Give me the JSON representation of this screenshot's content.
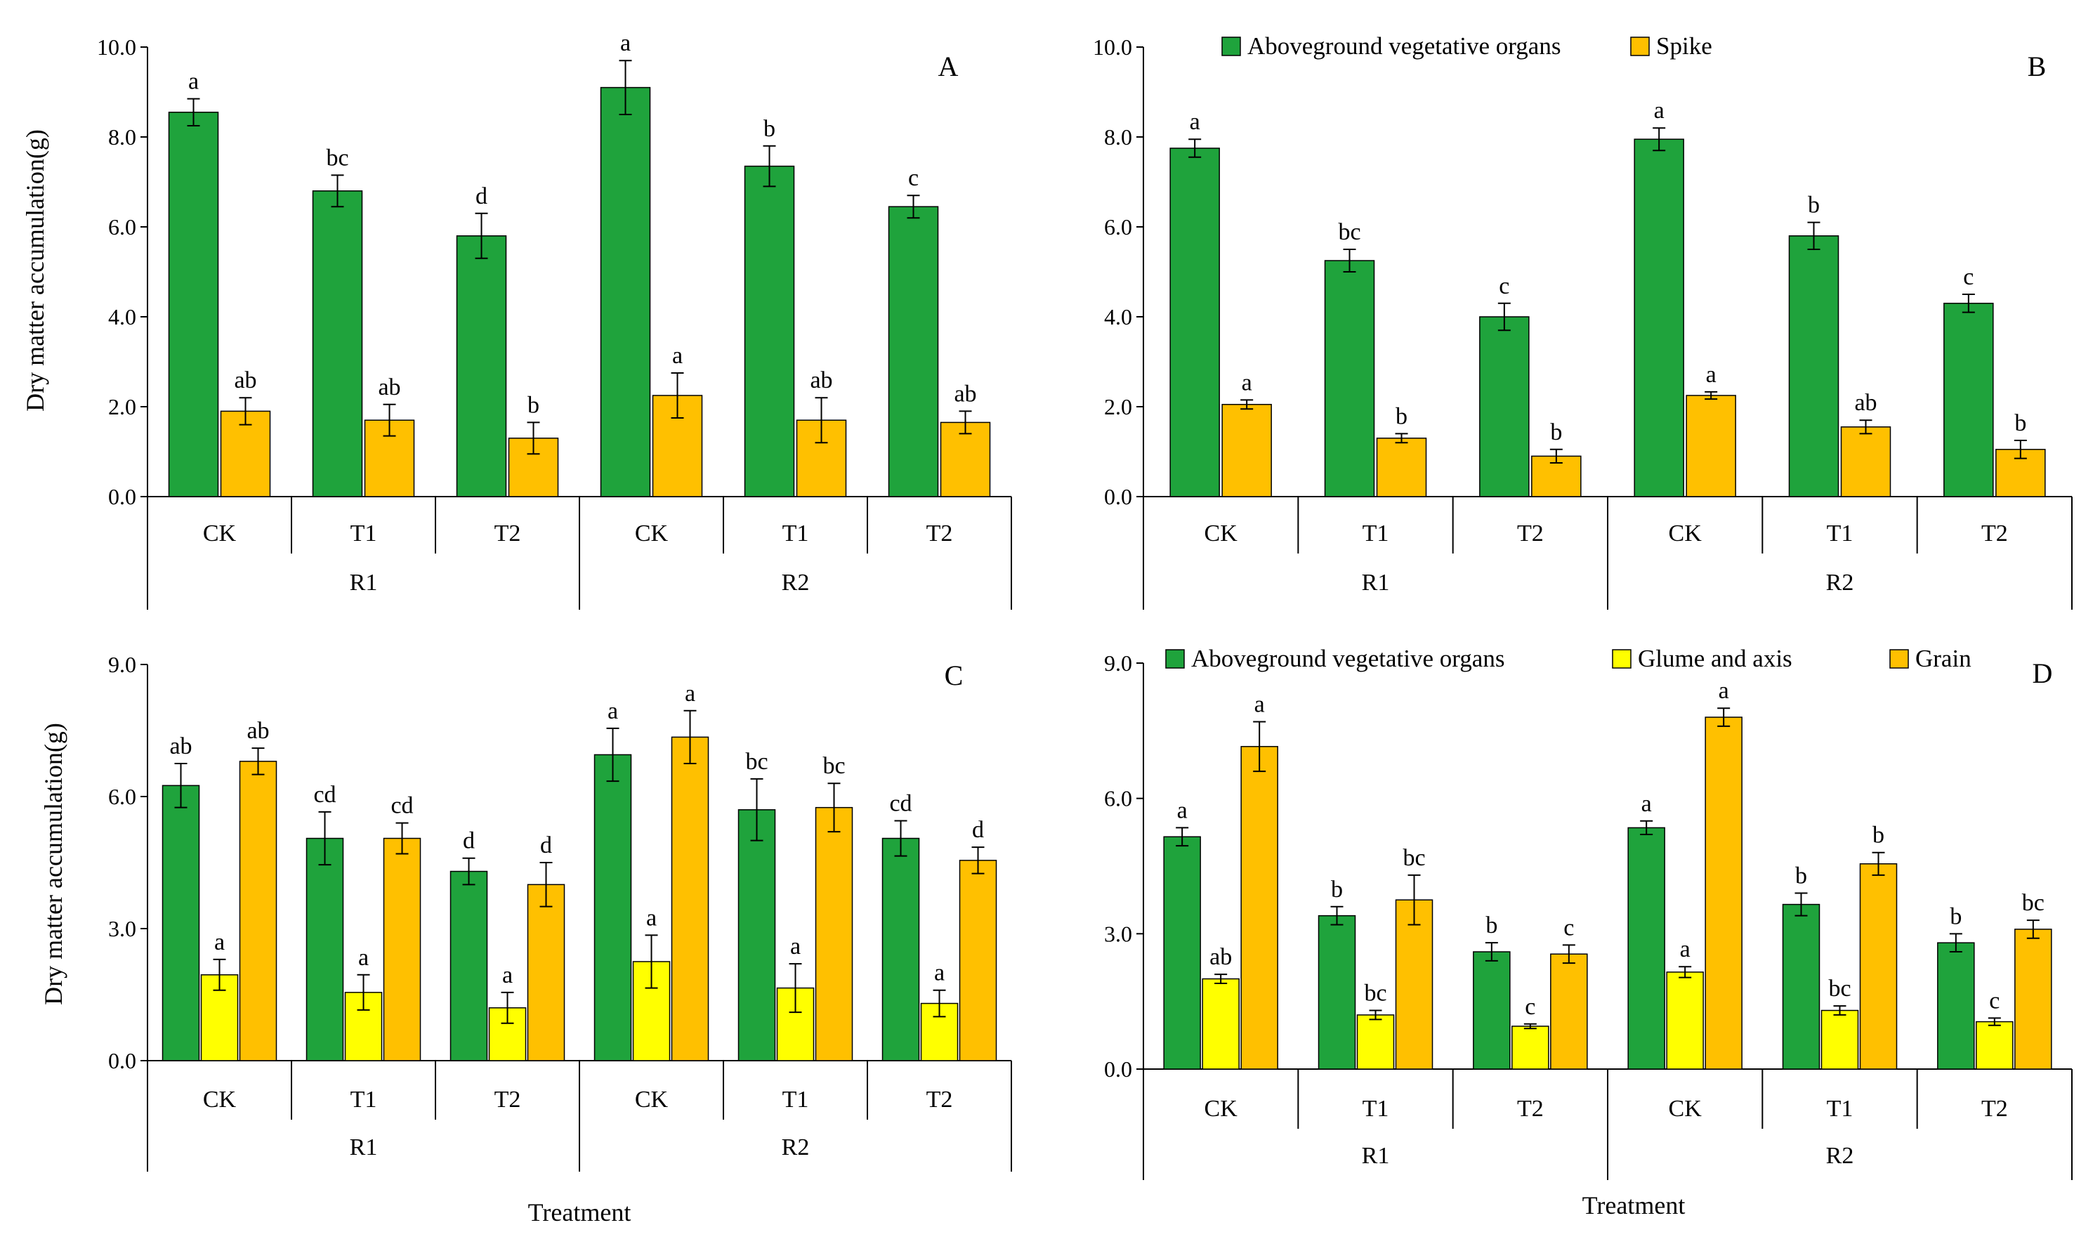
{
  "figure": {
    "x_axis_title": "Treatment"
  },
  "colors": {
    "veg": "#1fa33c",
    "spike": "#ffc000",
    "glume": "#ffff00",
    "grain": "#ffc000",
    "edge": "#000000"
  },
  "chart_data": [
    {
      "type": "bar",
      "panel_label": "A",
      "ylabel": "Dry matter accumulation(g)",
      "xlabel": "",
      "ylim": [
        0,
        10
      ],
      "yticks": [
        "0.0",
        "2.0",
        "4.0",
        "6.0",
        "8.0",
        "10.0"
      ],
      "ytick_values": [
        0,
        2,
        4,
        6,
        8,
        10
      ],
      "groups": [
        "R1",
        "R2"
      ],
      "categories": [
        "CK",
        "T1",
        "T2",
        "CK",
        "T1",
        "T2"
      ],
      "show_legend": false,
      "series": [
        {
          "name": "Aboveground vegetative organs",
          "color_key": "veg",
          "values": [
            8.55,
            6.8,
            5.8,
            9.1,
            7.35,
            6.45
          ],
          "errors": [
            0.3,
            0.35,
            0.5,
            0.6,
            0.45,
            0.25
          ],
          "letters": [
            "a",
            "bc",
            "d",
            "a",
            "b",
            "c"
          ]
        },
        {
          "name": "Spike",
          "color_key": "spike",
          "values": [
            1.9,
            1.7,
            1.3,
            2.25,
            1.7,
            1.65
          ],
          "errors": [
            0.3,
            0.35,
            0.35,
            0.5,
            0.5,
            0.25
          ],
          "letters": [
            "ab",
            "ab",
            "b",
            "a",
            "ab",
            "ab"
          ]
        }
      ]
    },
    {
      "type": "bar",
      "panel_label": "B",
      "ylabel": "",
      "xlabel": "",
      "ylim": [
        0,
        10
      ],
      "yticks": [
        "0.0",
        "2.0",
        "4.0",
        "6.0",
        "8.0",
        "10.0"
      ],
      "ytick_values": [
        0,
        2,
        4,
        6,
        8,
        10
      ],
      "groups": [
        "R1",
        "R2"
      ],
      "categories": [
        "CK",
        "T1",
        "T2",
        "CK",
        "T1",
        "T2"
      ],
      "show_legend": true,
      "series": [
        {
          "name": "Aboveground vegetative organs",
          "color_key": "veg",
          "values": [
            7.75,
            5.25,
            4.0,
            7.95,
            5.8,
            4.3
          ],
          "errors": [
            0.2,
            0.25,
            0.3,
            0.25,
            0.3,
            0.2
          ],
          "letters": [
            "a",
            "bc",
            "c",
            "a",
            "b",
            "c"
          ]
        },
        {
          "name": "Spike",
          "color_key": "spike",
          "values": [
            2.05,
            1.3,
            0.9,
            2.25,
            1.55,
            1.05
          ],
          "errors": [
            0.1,
            0.1,
            0.15,
            0.08,
            0.15,
            0.2
          ],
          "letters": [
            "a",
            "b",
            "b",
            "a",
            "ab",
            "b"
          ]
        }
      ]
    },
    {
      "type": "bar",
      "panel_label": "C",
      "ylabel": "Dry matter accumulation(g)",
      "xlabel": "Treatment",
      "ylim": [
        0,
        9
      ],
      "yticks": [
        "0.0",
        "3.0",
        "6.0",
        "9.0"
      ],
      "ytick_values": [
        0,
        3,
        6,
        9
      ],
      "groups": [
        "R1",
        "R2"
      ],
      "categories": [
        "CK",
        "T1",
        "T2",
        "CK",
        "T1",
        "T2"
      ],
      "show_legend": false,
      "series": [
        {
          "name": "Aboveground vegetative organs",
          "color_key": "veg",
          "values": [
            6.25,
            5.05,
            4.3,
            6.95,
            5.7,
            5.05
          ],
          "errors": [
            0.5,
            0.6,
            0.3,
            0.6,
            0.7,
            0.4
          ],
          "letters": [
            "ab",
            "cd",
            "d",
            "a",
            "bc",
            "cd"
          ]
        },
        {
          "name": "Glume and axis",
          "color_key": "glume",
          "values": [
            1.95,
            1.55,
            1.2,
            2.25,
            1.65,
            1.3
          ],
          "errors": [
            0.35,
            0.4,
            0.35,
            0.6,
            0.55,
            0.3
          ],
          "letters": [
            "a",
            "a",
            "a",
            "a",
            "a",
            "a"
          ]
        },
        {
          "name": "Grain",
          "color_key": "grain",
          "values": [
            6.8,
            5.05,
            4.0,
            7.35,
            5.75,
            4.55
          ],
          "errors": [
            0.3,
            0.35,
            0.5,
            0.6,
            0.55,
            0.3
          ],
          "letters": [
            "ab",
            "cd",
            "d",
            "a",
            "bc",
            "d"
          ]
        }
      ]
    },
    {
      "type": "bar",
      "panel_label": "D",
      "ylabel": "",
      "xlabel": "Treatment",
      "ylim": [
        0,
        9
      ],
      "yticks": [
        "0.0",
        "3.0",
        "6.0",
        "9.0"
      ],
      "ytick_values": [
        0,
        3,
        6,
        9
      ],
      "groups": [
        "R1",
        "R2"
      ],
      "categories": [
        "CK",
        "T1",
        "T2",
        "CK",
        "T1",
        "T2"
      ],
      "show_legend": true,
      "series": [
        {
          "name": "Aboveground vegetative organs",
          "color_key": "veg",
          "values": [
            5.15,
            3.4,
            2.6,
            5.35,
            3.65,
            2.8
          ],
          "errors": [
            0.2,
            0.2,
            0.2,
            0.15,
            0.25,
            0.2
          ],
          "letters": [
            "a",
            "b",
            "b",
            "a",
            "b",
            "b"
          ]
        },
        {
          "name": "Glume and axis",
          "color_key": "glume",
          "values": [
            2.0,
            1.2,
            0.95,
            2.15,
            1.3,
            1.05
          ],
          "errors": [
            0.1,
            0.1,
            0.05,
            0.12,
            0.1,
            0.08
          ],
          "letters": [
            "ab",
            "bc",
            "c",
            "a",
            "bc",
            "c"
          ]
        },
        {
          "name": "Grain",
          "color_key": "grain",
          "values": [
            7.15,
            3.75,
            2.55,
            7.8,
            4.55,
            3.1
          ],
          "errors": [
            0.55,
            0.55,
            0.2,
            0.2,
            0.25,
            0.2
          ],
          "letters": [
            "a",
            "bc",
            "c",
            "a",
            "b",
            "bc"
          ]
        }
      ]
    }
  ]
}
